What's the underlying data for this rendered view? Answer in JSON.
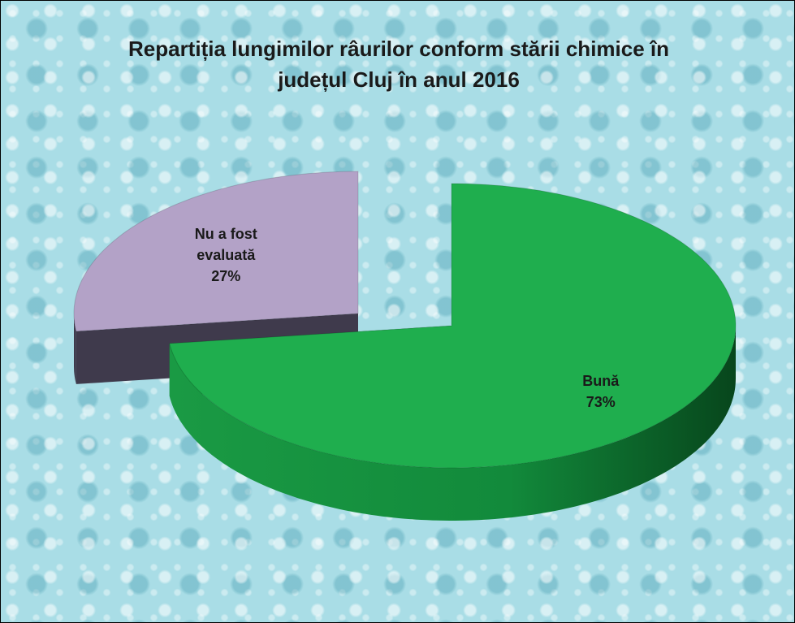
{
  "chart_data": {
    "type": "pie3d",
    "title": "Repartiția lungimilor râurilor conform stării chimice în județul Cluj în anul 2016",
    "categories": [
      "Bună",
      "Nu a fost evaluată"
    ],
    "values": [
      73,
      27
    ],
    "value_labels": [
      "73%",
      "27%"
    ],
    "colors": [
      "#1fae4e",
      "#b3a2c7"
    ],
    "side_colors": [
      "#0f6e2e",
      "#3f3a4c"
    ]
  }
}
